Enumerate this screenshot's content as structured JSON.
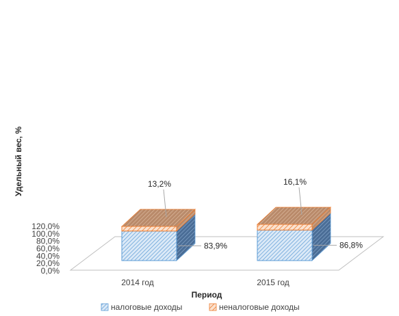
{
  "chart_data": {
    "type": "bar",
    "stacked": true,
    "three_d": true,
    "categories": [
      "2014  год",
      "2015  год"
    ],
    "series": [
      {
        "name": "налоговые доходы",
        "values": [
          83.9,
          86.8
        ],
        "labels": [
          "83,9%",
          "86,8%"
        ],
        "color": "#5b9bd5"
      },
      {
        "name": "неналоговые доходы",
        "values": [
          13.2,
          16.1
        ],
        "labels": [
          "13,2%",
          "16,1%"
        ],
        "color": "#ed7d31"
      }
    ],
    "xlabel": "Период",
    "ylabel": "Удельный вес, %",
    "ylim": [
      0,
      120
    ],
    "yticks": [
      0,
      20,
      40,
      60,
      80,
      100,
      120
    ],
    "ytick_labels": [
      "0,0%",
      "20,0%",
      "40,0%",
      "60,0%",
      "80,0%",
      "100,0%",
      "120,0%"
    ],
    "legend_position": "bottom",
    "grid": false
  }
}
